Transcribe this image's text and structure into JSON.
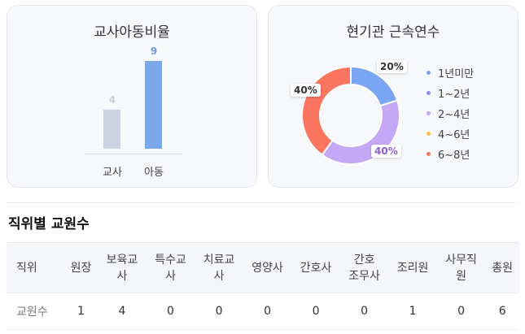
{
  "ratio_card": {
    "title": "교사아동비율",
    "chart_data": {
      "type": "bar",
      "categories": [
        "교사",
        "아동"
      ],
      "values": [
        4,
        9
      ],
      "colors": [
        "#cdd2e1",
        "#7aa8ea"
      ],
      "value_label_colors": [
        "#c7cbd6",
        "#6f9be0"
      ]
    }
  },
  "tenure_card": {
    "title": "현기관 근속연수",
    "chart_data": {
      "type": "pie",
      "categories": [
        "1년미만",
        "1~2년",
        "2~4년",
        "4~6년",
        "6~8년"
      ],
      "values": [
        20,
        0,
        40,
        0,
        40
      ],
      "value_labels": [
        "20%",
        "",
        "40%",
        "",
        "40%"
      ],
      "colors": [
        "#7aa5f5",
        "#8b8ff0",
        "#c4a7f5",
        "#f5c242",
        "#fb7560"
      ],
      "label_colors": [
        "#333333",
        "#333333",
        "#8e5ed1",
        "#333333",
        "#333333"
      ]
    }
  },
  "staff_section": {
    "title": "직위별 교원수",
    "columns": [
      "직위",
      "원장",
      "보육교\n사",
      "특수교\n사",
      "치료교\n사",
      "영양사",
      "간호사",
      "간호\n조무사",
      "조리원",
      "사무직\n원",
      "총원"
    ],
    "rows": [
      [
        "교원수",
        "1",
        "4",
        "0",
        "0",
        "0",
        "0",
        "0",
        "1",
        "0",
        "6"
      ]
    ]
  }
}
